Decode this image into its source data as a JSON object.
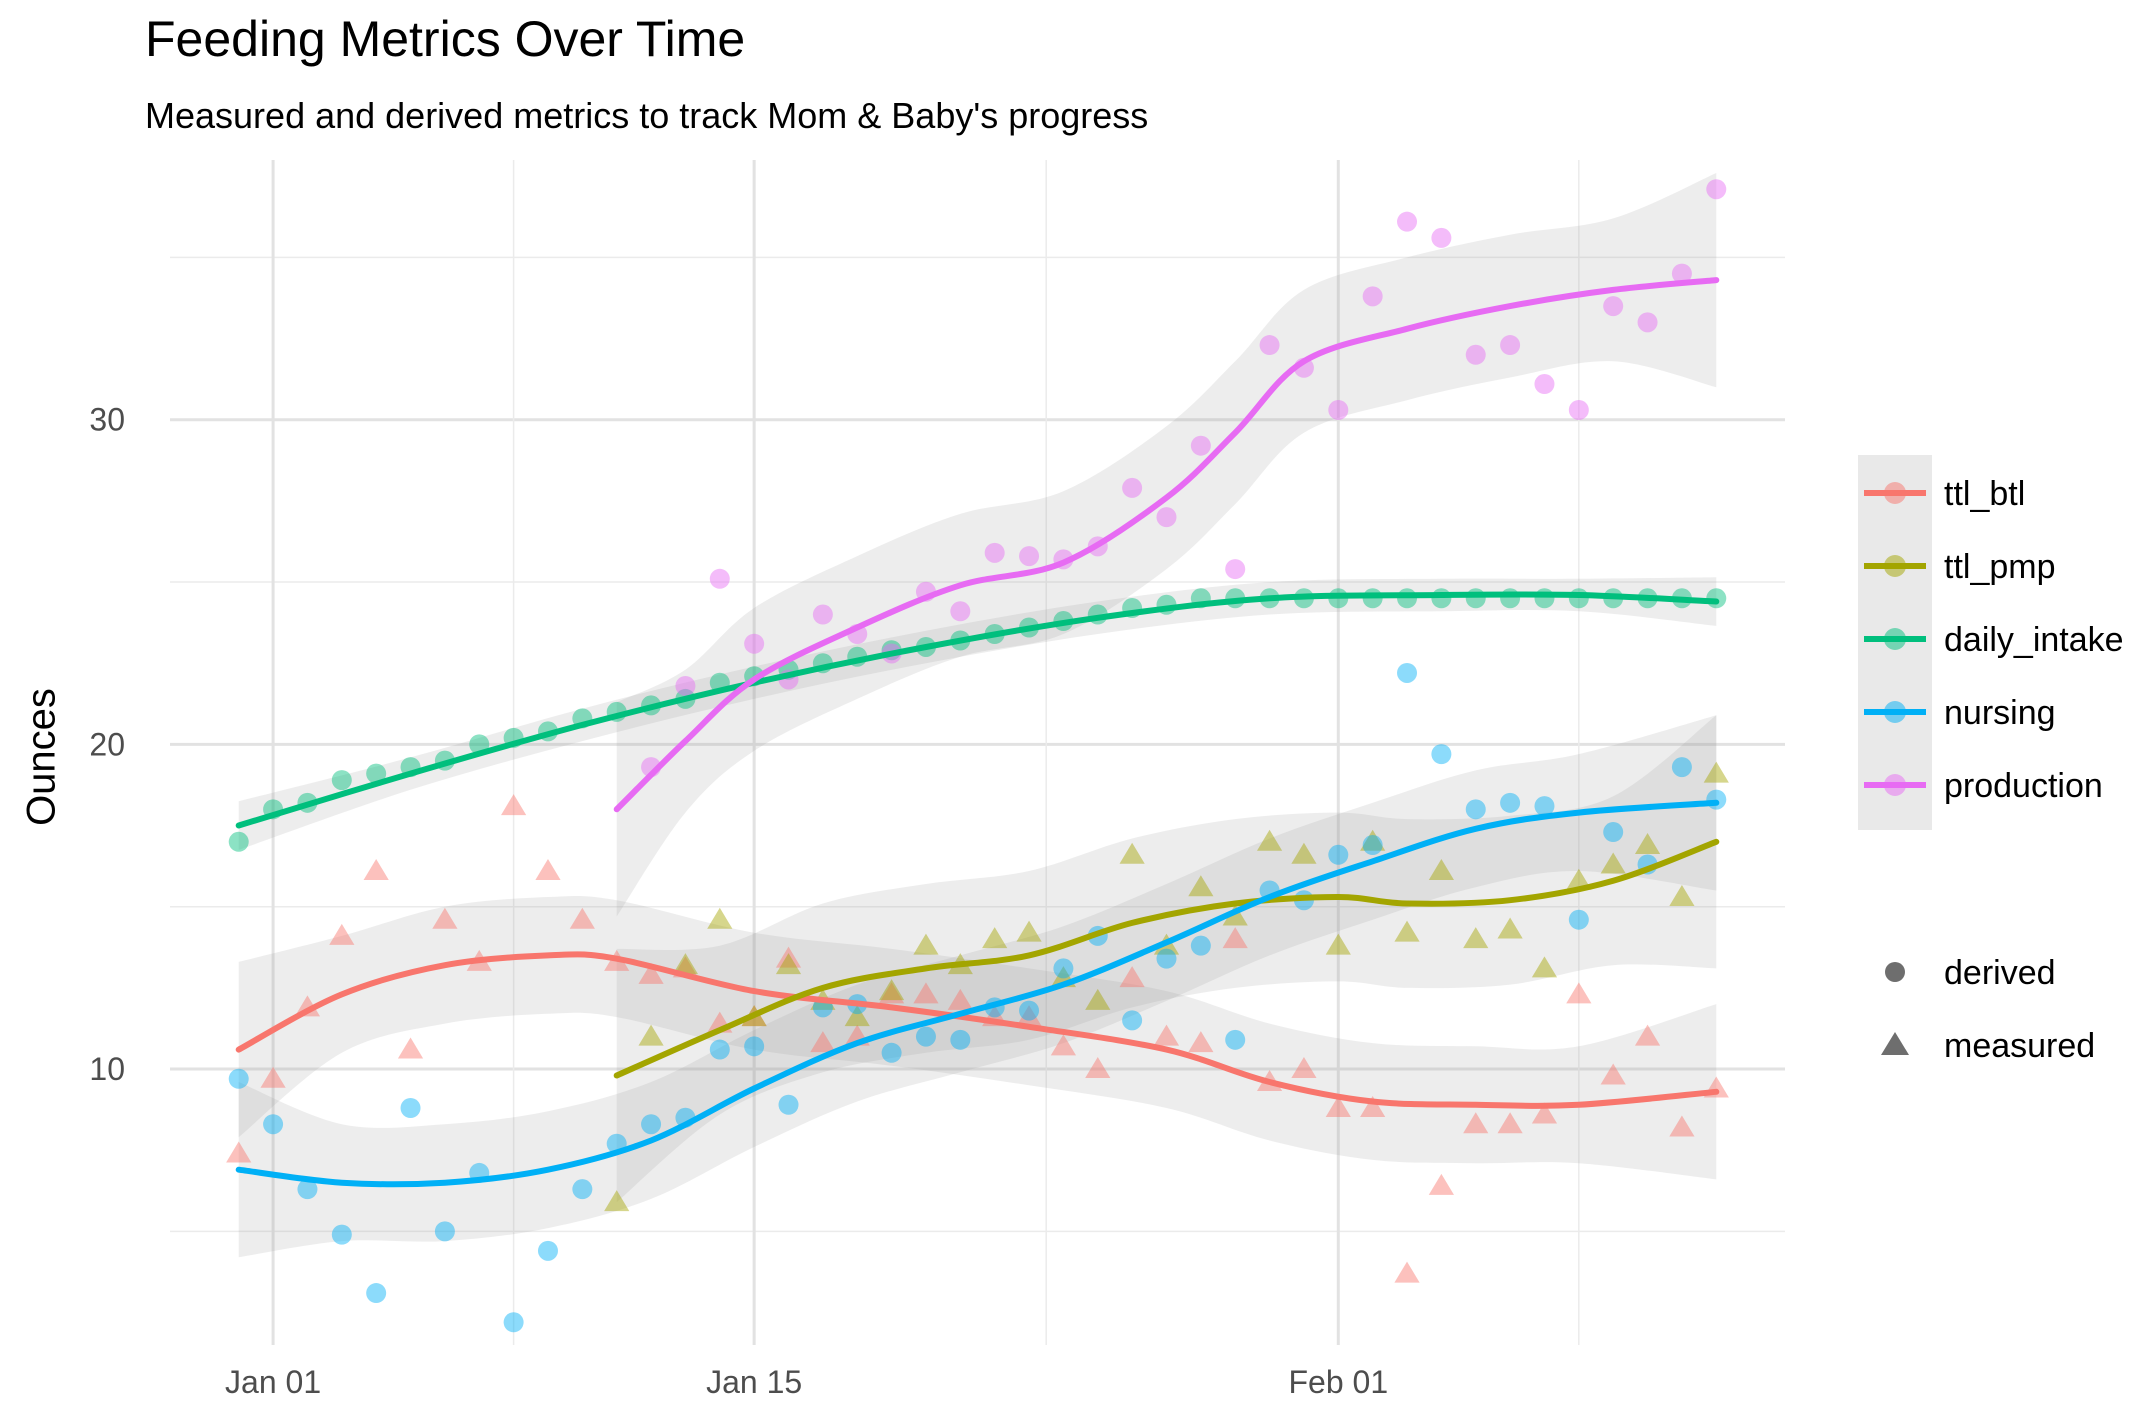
{
  "chart_data": {
    "type": "scatter",
    "title": "Feeding Metrics Over Time",
    "subtitle": "Measured and derived metrics to track Mom & Baby's progress",
    "xlabel": "",
    "ylabel": "Ounces",
    "x_axis_type": "date",
    "xlim": [
      "2017-12-29",
      "2018-02-14"
    ],
    "ylim": [
      1.5,
      38
    ],
    "x_ticks": [
      {
        "date": "2018-01-01",
        "label": "Jan 01"
      },
      {
        "date": "2018-01-15",
        "label": "Jan 15"
      },
      {
        "date": "2018-02-01",
        "label": "Feb 01"
      }
    ],
    "y_ticks": [
      10,
      20,
      30
    ],
    "grid": true,
    "legend_position": "right",
    "shape_legend": [
      {
        "label": "derived",
        "shape": "circle"
      },
      {
        "label": "measured",
        "shape": "triangle"
      }
    ],
    "series": [
      {
        "name": "ttl_btl",
        "color": "#F8766D",
        "shape": "triangle",
        "x": [
          "2017-12-31",
          "2018-01-01",
          "2018-01-02",
          "2018-01-03",
          "2018-01-04",
          "2018-01-05",
          "2018-01-06",
          "2018-01-07",
          "2018-01-08",
          "2018-01-09",
          "2018-01-10",
          "2018-01-11",
          "2018-01-12",
          "2018-01-13",
          "2018-01-14",
          "2018-01-15",
          "2018-01-16",
          "2018-01-17",
          "2018-01-18",
          "2018-01-19",
          "2018-01-20",
          "2018-01-21",
          "2018-01-22",
          "2018-01-23",
          "2018-01-24",
          "2018-01-25",
          "2018-01-26",
          "2018-01-27",
          "2018-01-28",
          "2018-01-29",
          "2018-01-30",
          "2018-01-31",
          "2018-02-01",
          "2018-02-02",
          "2018-02-03",
          "2018-02-04",
          "2018-02-05",
          "2018-02-06",
          "2018-02-07",
          "2018-02-08",
          "2018-02-09",
          "2018-02-10",
          "2018-02-11",
          "2018-02-12"
        ],
        "values": [
          7.4,
          9.7,
          11.9,
          14.1,
          16.1,
          10.6,
          14.6,
          13.3,
          18.1,
          16.1,
          14.6,
          13.3,
          12.9,
          13.1,
          11.4,
          11.6,
          13.4,
          10.8,
          11.0,
          12.3,
          12.3,
          12.1,
          11.6,
          11.6,
          10.7,
          10.0,
          12.8,
          11.0,
          10.8,
          14.0,
          9.6,
          10.0,
          8.8,
          8.8,
          3.7,
          6.4,
          8.3,
          8.3,
          8.6,
          12.3,
          9.8,
          11.0,
          8.2,
          9.4
        ],
        "trend": {
          "x": [
            "2017-12-31",
            "2018-01-03",
            "2018-01-06",
            "2018-01-09",
            "2018-01-11",
            "2018-01-15",
            "2018-01-19",
            "2018-01-23",
            "2018-01-27",
            "2018-01-30",
            "2018-02-02",
            "2018-02-05",
            "2018-02-08",
            "2018-02-12"
          ],
          "y": [
            10.6,
            12.3,
            13.2,
            13.5,
            13.4,
            12.4,
            11.9,
            11.3,
            10.6,
            9.6,
            9.0,
            8.9,
            8.9,
            9.3
          ]
        }
      },
      {
        "name": "ttl_pmp",
        "color": "#A3A500",
        "shape": "triangle",
        "x": [
          "2018-01-11",
          "2018-01-12",
          "2018-01-13",
          "2018-01-14",
          "2018-01-15",
          "2018-01-16",
          "2018-01-17",
          "2018-01-18",
          "2018-01-19",
          "2018-01-20",
          "2018-01-21",
          "2018-01-22",
          "2018-01-23",
          "2018-01-24",
          "2018-01-25",
          "2018-01-26",
          "2018-01-27",
          "2018-01-28",
          "2018-01-29",
          "2018-01-30",
          "2018-01-31",
          "2018-02-01",
          "2018-02-02",
          "2018-02-03",
          "2018-02-04",
          "2018-02-05",
          "2018-02-06",
          "2018-02-07",
          "2018-02-08",
          "2018-02-09",
          "2018-02-10",
          "2018-02-11",
          "2018-02-12"
        ],
        "values": [
          5.9,
          11.0,
          13.2,
          14.6,
          11.6,
          13.2,
          12.1,
          11.6,
          12.4,
          13.8,
          13.2,
          14.0,
          14.2,
          12.8,
          12.1,
          16.6,
          13.8,
          15.6,
          14.7,
          17.0,
          16.6,
          13.8,
          17.0,
          14.2,
          16.1,
          14.0,
          14.3,
          13.1,
          15.8,
          16.3,
          16.9,
          15.3,
          19.1
        ],
        "trend": {
          "x": [
            "2018-01-11",
            "2018-01-14",
            "2018-01-17",
            "2018-01-20",
            "2018-01-23",
            "2018-01-26",
            "2018-01-29",
            "2018-02-01",
            "2018-02-03",
            "2018-02-06",
            "2018-02-09",
            "2018-02-12"
          ],
          "y": [
            9.8,
            11.2,
            12.5,
            13.1,
            13.5,
            14.5,
            15.1,
            15.3,
            15.1,
            15.2,
            15.8,
            17.0
          ]
        }
      },
      {
        "name": "daily_intake",
        "color": "#00BF7D",
        "shape": "circle",
        "x": [
          "2017-12-31",
          "2018-01-01",
          "2018-01-02",
          "2018-01-03",
          "2018-01-04",
          "2018-01-05",
          "2018-01-06",
          "2018-01-07",
          "2018-01-08",
          "2018-01-09",
          "2018-01-10",
          "2018-01-11",
          "2018-01-12",
          "2018-01-13",
          "2018-01-14",
          "2018-01-15",
          "2018-01-16",
          "2018-01-17",
          "2018-01-18",
          "2018-01-19",
          "2018-01-20",
          "2018-01-21",
          "2018-01-22",
          "2018-01-23",
          "2018-01-24",
          "2018-01-25",
          "2018-01-26",
          "2018-01-27",
          "2018-01-28",
          "2018-01-29",
          "2018-01-30",
          "2018-01-31",
          "2018-02-01",
          "2018-02-02",
          "2018-02-03",
          "2018-02-04",
          "2018-02-05",
          "2018-02-06",
          "2018-02-07",
          "2018-02-08",
          "2018-02-09",
          "2018-02-10",
          "2018-02-11",
          "2018-02-12"
        ],
        "values": [
          17.0,
          18.0,
          18.2,
          18.9,
          19.1,
          19.3,
          19.5,
          20.0,
          20.2,
          20.4,
          20.8,
          21.0,
          21.2,
          21.4,
          21.9,
          22.1,
          22.3,
          22.5,
          22.7,
          22.9,
          23.0,
          23.2,
          23.4,
          23.6,
          23.8,
          24.0,
          24.2,
          24.3,
          24.5,
          24.5,
          24.5,
          24.5,
          24.5,
          24.5,
          24.5,
          24.5,
          24.5,
          24.5,
          24.5,
          24.5,
          24.5,
          24.5,
          24.5,
          24.5
        ],
        "trend": {
          "x": [
            "2017-12-31",
            "2018-01-05",
            "2018-01-10",
            "2018-01-15",
            "2018-01-20",
            "2018-01-25",
            "2018-01-30",
            "2018-02-04",
            "2018-02-08",
            "2018-02-12"
          ],
          "y": [
            17.5,
            19.1,
            20.6,
            21.9,
            23.0,
            23.9,
            24.5,
            24.6,
            24.6,
            24.4
          ]
        }
      },
      {
        "name": "nursing",
        "color": "#00B0F6",
        "shape": "circle",
        "x": [
          "2017-12-31",
          "2018-01-01",
          "2018-01-02",
          "2018-01-03",
          "2018-01-04",
          "2018-01-05",
          "2018-01-06",
          "2018-01-07",
          "2018-01-08",
          "2018-01-09",
          "2018-01-10",
          "2018-01-11",
          "2018-01-12",
          "2018-01-13",
          "2018-01-14",
          "2018-01-15",
          "2018-01-16",
          "2018-01-17",
          "2018-01-18",
          "2018-01-19",
          "2018-01-20",
          "2018-01-21",
          "2018-01-22",
          "2018-01-23",
          "2018-01-24",
          "2018-01-25",
          "2018-01-26",
          "2018-01-27",
          "2018-01-28",
          "2018-01-29",
          "2018-01-30",
          "2018-01-31",
          "2018-02-01",
          "2018-02-02",
          "2018-02-03",
          "2018-02-04",
          "2018-02-05",
          "2018-02-06",
          "2018-02-07",
          "2018-02-08",
          "2018-02-09",
          "2018-02-10",
          "2018-02-11",
          "2018-02-12"
        ],
        "values": [
          9.7,
          8.3,
          6.3,
          4.9,
          3.1,
          8.8,
          5.0,
          6.8,
          2.2,
          4.4,
          6.3,
          7.7,
          8.3,
          8.5,
          10.6,
          10.7,
          8.9,
          11.9,
          12.0,
          10.5,
          11.0,
          10.9,
          11.9,
          11.8,
          13.1,
          14.1,
          11.5,
          13.4,
          13.8,
          10.9,
          15.5,
          15.2,
          16.6,
          16.9,
          22.2,
          19.7,
          18.0,
          18.2,
          18.1,
          14.6,
          17.3,
          16.3,
          19.3,
          18.3
        ],
        "trend": {
          "x": [
            "2017-12-31",
            "2018-01-03",
            "2018-01-06",
            "2018-01-09",
            "2018-01-12",
            "2018-01-15",
            "2018-01-18",
            "2018-01-21",
            "2018-01-24",
            "2018-01-27",
            "2018-01-30",
            "2018-02-02",
            "2018-02-05",
            "2018-02-08",
            "2018-02-12"
          ],
          "y": [
            6.9,
            6.5,
            6.5,
            6.9,
            7.8,
            9.4,
            10.8,
            11.7,
            12.6,
            13.9,
            15.3,
            16.4,
            17.4,
            17.9,
            18.2
          ]
        }
      },
      {
        "name": "production",
        "color": "#E76BF3",
        "shape": "circle",
        "x": [
          "2018-01-12",
          "2018-01-13",
          "2018-01-14",
          "2018-01-15",
          "2018-01-16",
          "2018-01-17",
          "2018-01-18",
          "2018-01-19",
          "2018-01-20",
          "2018-01-21",
          "2018-01-22",
          "2018-01-23",
          "2018-01-24",
          "2018-01-25",
          "2018-01-26",
          "2018-01-27",
          "2018-01-28",
          "2018-01-29",
          "2018-01-30",
          "2018-01-31",
          "2018-02-01",
          "2018-02-02",
          "2018-02-03",
          "2018-02-04",
          "2018-02-05",
          "2018-02-06",
          "2018-02-07",
          "2018-02-08",
          "2018-02-09",
          "2018-02-10",
          "2018-02-11",
          "2018-02-12"
        ],
        "values": [
          19.3,
          21.8,
          25.1,
          23.1,
          22.0,
          24.0,
          23.4,
          22.8,
          24.7,
          24.1,
          25.9,
          25.8,
          25.7,
          26.1,
          27.9,
          27.0,
          29.2,
          25.4,
          32.3,
          31.6,
          30.3,
          33.8,
          36.1,
          35.6,
          32.0,
          32.3,
          31.1,
          30.3,
          33.5,
          33.0,
          34.5,
          37.1
        ],
        "trend": {
          "x": [
            "2018-01-11",
            "2018-01-13",
            "2018-01-15",
            "2018-01-18",
            "2018-01-21",
            "2018-01-24",
            "2018-01-27",
            "2018-01-29",
            "2018-01-31",
            "2018-02-03",
            "2018-02-06",
            "2018-02-09",
            "2018-02-12"
          ],
          "y": [
            18.0,
            20.1,
            22.0,
            23.6,
            24.9,
            25.6,
            27.6,
            29.6,
            31.8,
            32.8,
            33.5,
            34.0,
            34.3
          ]
        }
      }
    ]
  }
}
